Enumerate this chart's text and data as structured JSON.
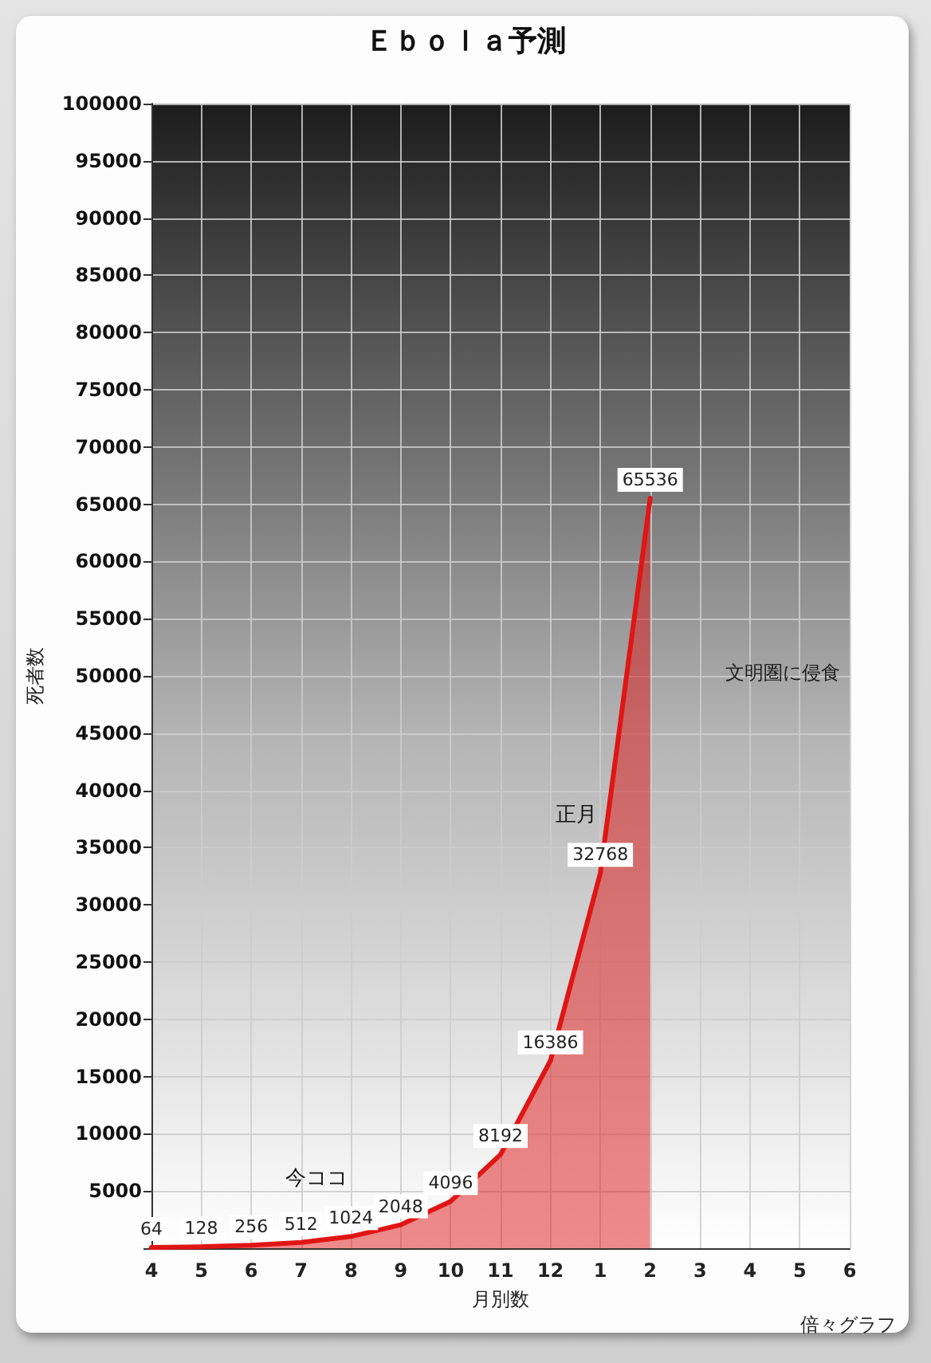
{
  "chart_data": {
    "type": "area",
    "title": "Ｅｂｏｌａ予測",
    "xlabel": "月別数",
    "ylabel": "死者数",
    "categories": [
      "4",
      "5",
      "6",
      "7",
      "8",
      "9",
      "10",
      "11",
      "12",
      "1",
      "2",
      "3",
      "4",
      "5",
      "6"
    ],
    "values": [
      64,
      128,
      256,
      512,
      1024,
      2048,
      4096,
      8192,
      16386,
      32768,
      65536,
      null,
      null,
      null,
      null
    ],
    "color": "#e01515",
    "ylim": [
      0,
      100000
    ],
    "yticks": [
      {
        "value": 0,
        "label": null
      },
      5000,
      10000,
      15000,
      20000,
      25000,
      30000,
      35000,
      40000,
      45000,
      50000,
      55000,
      60000,
      65000,
      70000,
      75000,
      80000,
      85000,
      90000,
      95000,
      100000
    ],
    "grid": true,
    "marker": "none",
    "data_labels": true,
    "annotations": [
      {
        "text": "今ココ",
        "x": "8",
        "y": 1024
      },
      {
        "text": "正月",
        "x": "1",
        "y": 32768
      },
      "文明圏に侵食",
      "倍々グラフ"
    ]
  }
}
